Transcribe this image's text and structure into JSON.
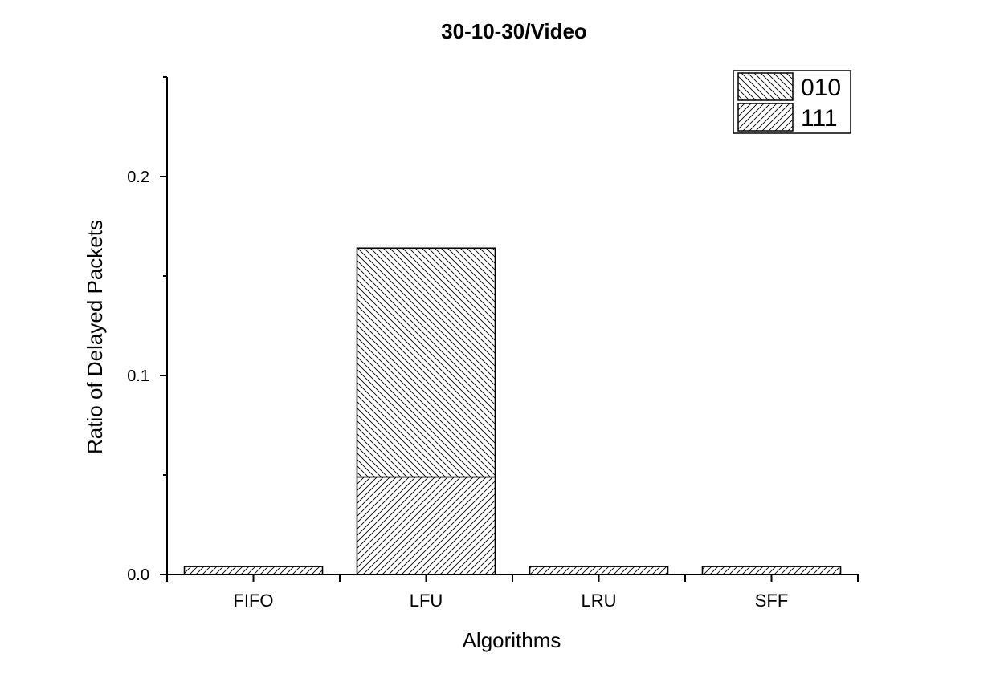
{
  "chart_data": {
    "type": "bar",
    "stacked": true,
    "title": "30-10-30/Video",
    "xlabel": "Algorithms",
    "ylabel": "Ratio of Delayed Packets",
    "categories": [
      "FIFO",
      "LFU",
      "LRU",
      "SFF"
    ],
    "series": [
      {
        "name": "111",
        "values": [
          0.004,
          0.049,
          0.004,
          0.004
        ],
        "hatch": "forward-diagonal"
      },
      {
        "name": "010",
        "values": [
          0.0,
          0.115,
          0.0,
          0.0
        ],
        "hatch": "backward-diagonal"
      }
    ],
    "ylim": [
      0,
      0.25
    ],
    "yticks": [
      {
        "value": 0.0,
        "label": "0.0"
      },
      {
        "value": 0.1,
        "label": "0.1"
      },
      {
        "value": 0.2,
        "label": "0.2"
      }
    ],
    "yminor_ticks": [
      0.05,
      0.15,
      0.25
    ],
    "grid": false,
    "legend": {
      "placement": "top-right",
      "order": [
        "010",
        "111"
      ]
    },
    "colors": {
      "bar_fill": "#ffffff",
      "stroke": "#000000"
    }
  }
}
